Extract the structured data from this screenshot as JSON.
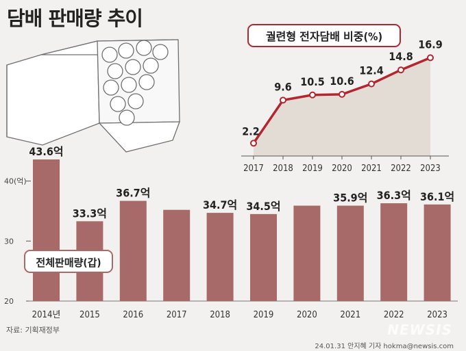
{
  "title": "담배 판매량 추이",
  "source": "자료: 기획재정부",
  "credit": "24.01.31 안지혜 기자 hokma@newsis.com",
  "watermark": "NEWSIS",
  "colors": {
    "bar": "#a86a68",
    "line": "#b3252f",
    "area": "#e2dcd4",
    "background": "#f3f1ef"
  },
  "chart_data": [
    {
      "type": "bar",
      "title": "전체판매량(갑)",
      "categories": [
        "2014년",
        "2015",
        "2016",
        "2017",
        "2018",
        "2019",
        "2020",
        "2021",
        "2022",
        "2023"
      ],
      "values": [
        43.6,
        33.3,
        36.7,
        35.2,
        34.7,
        34.5,
        35.9,
        35.9,
        36.3,
        36.1
      ],
      "data_labels": [
        "43.6억",
        "33.3억",
        "36.7억",
        "",
        "34.7억",
        "34.5억",
        "",
        "35.9억",
        "36.3억",
        "36.1억"
      ],
      "y_ticks": [
        {
          "value": 40,
          "label": "40(억)"
        },
        {
          "value": 30,
          "label": "30"
        },
        {
          "value": 20,
          "label": "20"
        }
      ],
      "ylim": [
        20,
        46
      ],
      "unit": "억 갑"
    },
    {
      "type": "area",
      "title": "궐련형 전자담배 비중(%)",
      "x": [
        "2017",
        "2018",
        "2019",
        "2020",
        "2021",
        "2022",
        "2023"
      ],
      "values": [
        2.2,
        9.6,
        10.5,
        10.6,
        12.4,
        14.8,
        16.9
      ],
      "data_labels": [
        "2.2",
        "9.6",
        "10.5",
        "10.6",
        "12.4",
        "14.8",
        "16.9"
      ],
      "ylim": [
        0,
        18
      ]
    }
  ]
}
